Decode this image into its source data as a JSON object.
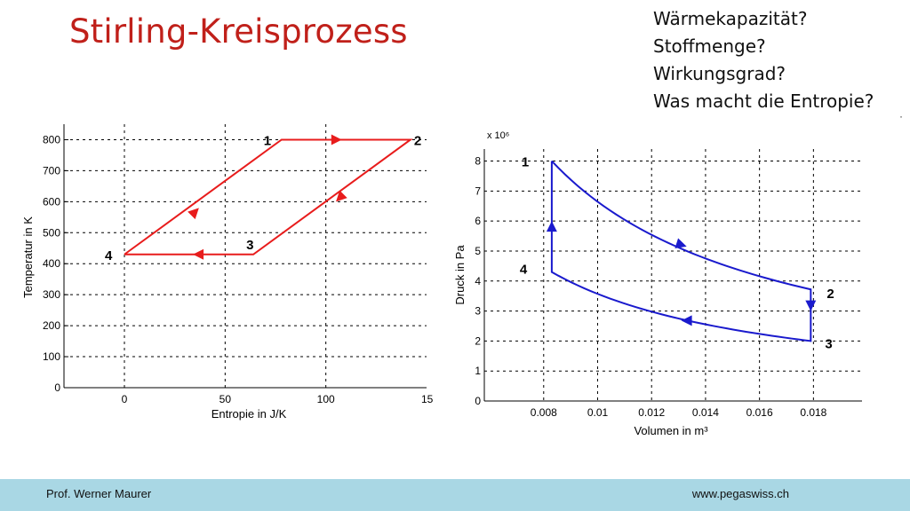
{
  "slide": {
    "title": "Stirling-Kreisprozess",
    "questions": [
      "Wärmekapazität?",
      "Stoffmenge?",
      "Wirkungsgrad?",
      "Was macht die Entropie?"
    ],
    "footer_left": "Prof. Werner Maurer",
    "footer_right": "www.pegaswiss.ch",
    "footer_color": "#a9d7e4",
    "title_color": "#c0201a"
  },
  "chart_data": [
    {
      "type": "line",
      "title": "",
      "xlabel": "Entropie in J/K",
      "ylabel": "Temperatur in K",
      "xlim": [
        -30,
        150
      ],
      "ylim": [
        0,
        850
      ],
      "xticks": [
        0,
        50,
        100
      ],
      "xtick_labels": [
        "0",
        "50",
        "100"
      ],
      "xtick_clipped_label": "15",
      "yticks": [
        0,
        100,
        200,
        300,
        400,
        500,
        600,
        700,
        800
      ],
      "ytick_labels": [
        "0",
        "100",
        "200",
        "300",
        "400",
        "500",
        "600",
        "700",
        "800"
      ],
      "grid": true,
      "color": "#e81c1c",
      "series": [
        {
          "points": [
            [
              0,
              430
            ],
            [
              78,
              800
            ],
            [
              142,
              800
            ],
            [
              64,
              430
            ],
            [
              0,
              430
            ]
          ]
        }
      ],
      "state_labels": [
        {
          "text": "1",
          "x": 78,
          "y": 800
        },
        {
          "text": "2",
          "x": 142,
          "y": 800
        },
        {
          "text": "3",
          "x": 64,
          "y": 430
        },
        {
          "text": "4",
          "x": 0,
          "y": 430
        }
      ],
      "arrows": [
        {
          "x": 37,
          "y": 580,
          "direction": "up-right"
        },
        {
          "x": 108,
          "y": 800,
          "direction": "right"
        },
        {
          "x": 105,
          "y": 600,
          "direction": "down-left"
        },
        {
          "x": 34,
          "y": 430,
          "direction": "left"
        }
      ]
    },
    {
      "type": "line",
      "title": "",
      "xlabel": "Volumen in m³",
      "ylabel": "Druck in Pa",
      "yscale_label": "x 10⁶",
      "xlim": [
        0.0058,
        0.0198
      ],
      "ylim": [
        0,
        8.4
      ],
      "xticks": [
        0.008,
        0.01,
        0.012,
        0.014,
        0.016,
        0.018
      ],
      "xtick_labels": [
        "0.008",
        "0.01",
        "0.012",
        "0.014",
        "0.016",
        "0.018"
      ],
      "yticks": [
        0,
        1,
        2,
        3,
        4,
        5,
        6,
        7,
        8
      ],
      "ytick_labels": [
        "0",
        "1",
        "2",
        "3",
        "4",
        "5",
        "6",
        "7",
        "8"
      ],
      "grid": true,
      "color": "#1a1acd",
      "series": [
        {
          "points": [
            [
              0.0083,
              8.0
            ],
            [
              0.0179,
              3.72
            ],
            [
              0.0179,
              2.0
            ],
            [
              0.0083,
              4.3
            ],
            [
              0.0083,
              8.0
            ]
          ]
        }
      ],
      "state_labels": [
        {
          "text": "1",
          "x": 0.0083,
          "y": 8.0
        },
        {
          "text": "2",
          "x": 0.0179,
          "y": 3.72
        },
        {
          "text": "3",
          "x": 0.0179,
          "y": 2.0
        },
        {
          "text": "4",
          "x": 0.0083,
          "y": 4.3
        }
      ],
      "arrows": [
        {
          "x": 0.0133,
          "y": 5.15,
          "direction": "down-right"
        },
        {
          "x": 0.0179,
          "y": 3.0,
          "direction": "down"
        },
        {
          "x": 0.0131,
          "y": 2.68,
          "direction": "left"
        },
        {
          "x": 0.0083,
          "y": 6.0,
          "direction": "up"
        }
      ]
    }
  ]
}
